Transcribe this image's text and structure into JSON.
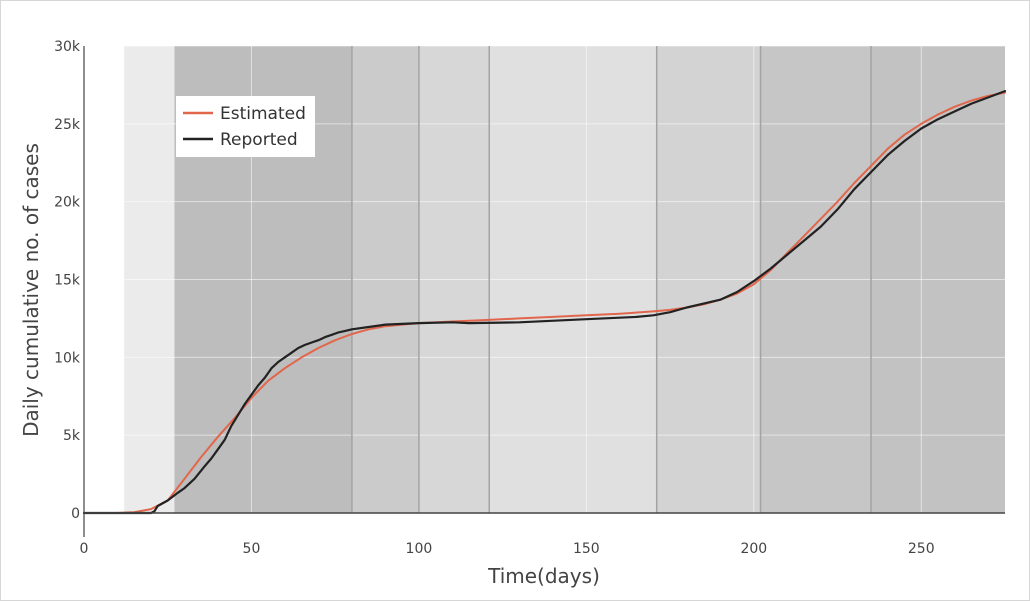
{
  "chart_data": {
    "type": "line",
    "xlabel": "Time(days)",
    "ylabel": "Daily cumulative no. of cases",
    "xlim": [
      0,
      275
    ],
    "ylim": [
      0,
      30000
    ],
    "x_ticks": [
      0,
      50,
      100,
      150,
      200,
      250
    ],
    "x_tick_labels": [
      "0",
      "50",
      "100",
      "150",
      "200",
      "250"
    ],
    "y_ticks": [
      0,
      5000,
      10000,
      15000,
      20000,
      25000,
      30000
    ],
    "y_tick_labels": [
      "0",
      "5k",
      "10k",
      "15k",
      "20k",
      "25k",
      "30k"
    ],
    "grid": true,
    "legend_position": "top-left",
    "phase_bands": [
      {
        "x0": 12,
        "x1": 27,
        "color": "#ebebeb"
      },
      {
        "x0": 27,
        "x1": 80,
        "color": "#bdbdbd"
      },
      {
        "x0": 80,
        "x1": 100,
        "color": "#cbcbcb"
      },
      {
        "x0": 100,
        "x1": 121,
        "color": "#d7d7d7"
      },
      {
        "x0": 121,
        "x1": 171,
        "color": "#e0e0e0"
      },
      {
        "x0": 171,
        "x1": 202,
        "color": "#d3d3d3"
      },
      {
        "x0": 202,
        "x1": 235,
        "color": "#c6c6c6"
      },
      {
        "x0": 235,
        "x1": 275,
        "color": "#c2c2c2"
      }
    ],
    "phase_boundaries": [
      80,
      100,
      121,
      171,
      202,
      235
    ],
    "series": [
      {
        "name": "Estimated",
        "color": "#e1664b",
        "x": [
          0,
          10,
          15,
          20,
          25,
          30,
          35,
          40,
          45,
          50,
          55,
          60,
          65,
          70,
          75,
          80,
          85,
          90,
          95,
          100,
          110,
          120,
          130,
          140,
          150,
          160,
          170,
          175,
          180,
          185,
          190,
          195,
          200,
          205,
          210,
          215,
          220,
          225,
          230,
          235,
          240,
          245,
          250,
          255,
          260,
          265,
          270,
          275
        ],
        "y": [
          0,
          0,
          50,
          250,
          800,
          2200,
          3600,
          4900,
          6100,
          7400,
          8500,
          9300,
          10000,
          10600,
          11100,
          11500,
          11800,
          12000,
          12100,
          12200,
          12300,
          12400,
          12500,
          12600,
          12700,
          12800,
          12950,
          13050,
          13200,
          13400,
          13700,
          14100,
          14700,
          15600,
          16700,
          17800,
          18900,
          20000,
          21200,
          22300,
          23400,
          24300,
          25000,
          25600,
          26100,
          26500,
          26800,
          27000
        ]
      },
      {
        "name": "Reported",
        "color": "#222222",
        "x": [
          0,
          10,
          20,
          21,
          22,
          25,
          28,
          30,
          33,
          36,
          38,
          40,
          42,
          44,
          46,
          48,
          50,
          52,
          54,
          56,
          58,
          60,
          62,
          64,
          66,
          68,
          70,
          72,
          74,
          76,
          78,
          80,
          85,
          90,
          95,
          100,
          110,
          115,
          130,
          150,
          165,
          170,
          175,
          180,
          185,
          190,
          195,
          200,
          205,
          210,
          215,
          220,
          225,
          230,
          235,
          240,
          245,
          250,
          255,
          260,
          265,
          270,
          275
        ],
        "y": [
          0,
          0,
          0,
          100,
          450,
          800,
          1300,
          1600,
          2200,
          3000,
          3500,
          4100,
          4700,
          5600,
          6300,
          7000,
          7600,
          8200,
          8700,
          9300,
          9700,
          10000,
          10300,
          10600,
          10800,
          10950,
          11100,
          11300,
          11450,
          11600,
          11700,
          11800,
          11950,
          12100,
          12150,
          12200,
          12250,
          12200,
          12250,
          12450,
          12600,
          12700,
          12900,
          13200,
          13450,
          13700,
          14200,
          14900,
          15700,
          16600,
          17500,
          18400,
          19500,
          20800,
          21900,
          23000,
          23900,
          24700,
          25300,
          25800,
          26300,
          26700,
          27100
        ]
      }
    ]
  }
}
